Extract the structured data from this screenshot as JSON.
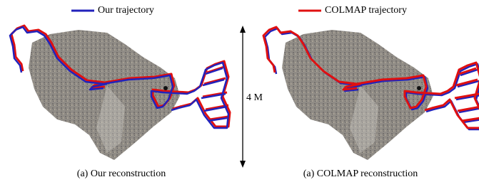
{
  "legend": [
    {
      "label": "Our trajectory",
      "color": "#2222bb"
    },
    {
      "label": "COLMAP trajectory",
      "color": "#e01010"
    }
  ],
  "scale_label": "4 M",
  "captions": [
    "(a) Our reconstruction",
    "(a) COLMAP reconstruction"
  ]
}
